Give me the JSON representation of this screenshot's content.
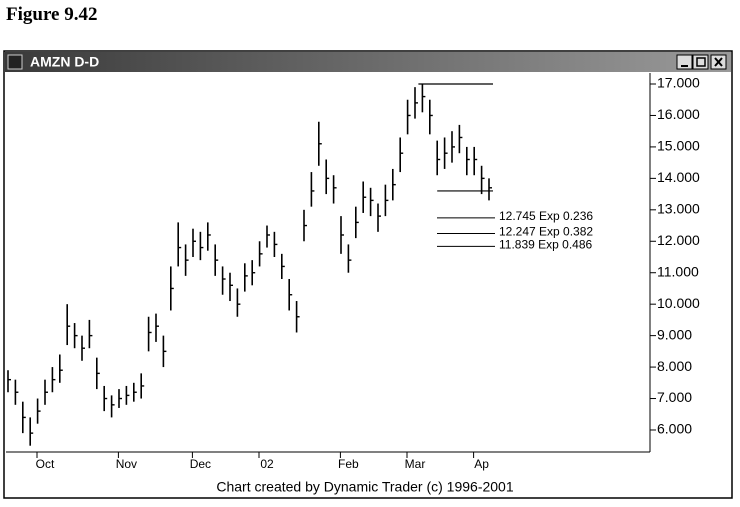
{
  "figure_label": "Figure 9.42",
  "window_title": "AMZN D-D",
  "footer": "Chart created by Dynamic Trader (c) 1996-2001",
  "chart_data": {
    "type": "ohlc",
    "color": "#000000",
    "categories": [
      null,
      null,
      null,
      null,
      null,
      "Oct",
      null,
      null,
      null,
      null,
      null,
      null,
      null,
      null,
      null,
      null,
      "Nov",
      null,
      null,
      null,
      null,
      null,
      null,
      null,
      null,
      null,
      "Dec",
      null,
      null,
      null,
      null,
      null,
      null,
      null,
      null,
      "02",
      null,
      null,
      null,
      null,
      null,
      null,
      null,
      null,
      null,
      null,
      "Feb",
      null,
      null,
      null,
      null,
      null,
      null,
      null,
      null,
      "Mar",
      null,
      null,
      null,
      null,
      null,
      null,
      null,
      null,
      "Ap",
      null
    ],
    "high": [
      7.9,
      7.6,
      6.9,
      6.4,
      7.0,
      7.6,
      8.0,
      8.4,
      10.0,
      9.4,
      9.0,
      9.5,
      8.3,
      7.4,
      7.1,
      7.3,
      7.4,
      7.5,
      7.8,
      9.6,
      9.7,
      9.0,
      11.2,
      12.6,
      11.9,
      12.4,
      12.3,
      12.6,
      11.9,
      11.2,
      11.0,
      10.5,
      11.3,
      11.4,
      12.0,
      12.5,
      12.3,
      11.6,
      10.8,
      10.1,
      13.0,
      14.2,
      15.8,
      14.6,
      14.1,
      12.8,
      11.9,
      13.1,
      13.9,
      13.7,
      13.2,
      13.8,
      14.3,
      15.3,
      16.5,
      16.9,
      17.0,
      16.5,
      15.2,
      15.3,
      15.5,
      15.7,
      15.0,
      15.0,
      14.4,
      14.0
    ],
    "low": [
      7.2,
      6.8,
      5.9,
      5.5,
      6.2,
      6.8,
      7.2,
      7.5,
      8.7,
      8.6,
      8.2,
      8.6,
      7.3,
      6.6,
      6.4,
      6.7,
      6.8,
      6.9,
      7.0,
      8.5,
      8.8,
      8.0,
      9.8,
      11.2,
      10.9,
      11.5,
      11.4,
      11.7,
      10.9,
      10.3,
      10.1,
      9.6,
      10.4,
      10.6,
      11.2,
      11.8,
      11.5,
      10.8,
      9.8,
      9.1,
      12.0,
      13.1,
      14.4,
      13.5,
      13.2,
      11.6,
      11.0,
      12.1,
      12.9,
      12.8,
      12.3,
      12.8,
      13.3,
      14.2,
      15.4,
      15.9,
      16.1,
      15.4,
      14.1,
      14.3,
      14.5,
      14.8,
      14.1,
      14.1,
      13.5,
      13.3
    ],
    "close": [
      7.6,
      7.2,
      6.4,
      5.9,
      6.6,
      7.2,
      7.6,
      7.9,
      9.3,
      9.0,
      8.6,
      9.0,
      7.8,
      7.0,
      6.8,
      7.0,
      7.1,
      7.2,
      7.4,
      9.1,
      9.3,
      8.5,
      10.5,
      11.8,
      11.4,
      12.0,
      11.8,
      12.2,
      11.4,
      10.8,
      10.6,
      10.0,
      10.9,
      11.0,
      11.6,
      12.2,
      11.9,
      11.2,
      10.3,
      9.6,
      12.5,
      13.6,
      15.1,
      14.0,
      13.7,
      12.2,
      11.4,
      12.6,
      13.4,
      13.3,
      12.8,
      13.3,
      13.8,
      14.8,
      16.0,
      16.4,
      16.6,
      16.0,
      14.6,
      14.8,
      15.0,
      15.3,
      14.6,
      14.6,
      14.0,
      13.7
    ],
    "levels": [
      {
        "value": 17.0
      },
      {
        "value": 13.6
      }
    ],
    "annotations": [
      {
        "value": 12.745,
        "label": "12.745 Exp 0.236"
      },
      {
        "value": 12.247,
        "label": "12.247 Exp 0.382"
      },
      {
        "value": 11.839,
        "label": "11.839 Exp 0.486"
      }
    ],
    "ylim": [
      5.3,
      17.35
    ],
    "yticks": [
      {
        "value": 6,
        "label": "6.000"
      },
      {
        "value": 7,
        "label": "7.000"
      },
      {
        "value": 8,
        "label": "8.000"
      },
      {
        "value": 9,
        "label": "9.000"
      },
      {
        "value": 10,
        "label": "10.000"
      },
      {
        "value": 11,
        "label": "11.000"
      },
      {
        "value": 12,
        "label": "12.000"
      },
      {
        "value": 13,
        "label": "13.000"
      },
      {
        "value": 14,
        "label": "14.000"
      },
      {
        "value": 15,
        "label": "15.000"
      },
      {
        "value": 16,
        "label": "16.000"
      },
      {
        "value": 17,
        "label": "17.000"
      }
    ]
  }
}
